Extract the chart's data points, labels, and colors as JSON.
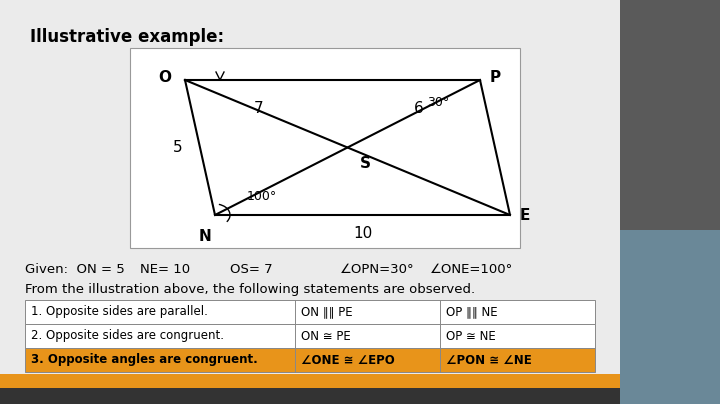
{
  "title": "Illustrative example:",
  "bg_color": "#c8c8c8",
  "slide_bg": "#ebebeb",
  "orange_color": "#e8941a",
  "text_color": "#000000",
  "diagram_box_color": "#ffffff",
  "sidebar_color": "#4a4a4a",
  "webcam_bg": "#6a8898",
  "table": {
    "rows": [
      [
        "1. Opposite sides are parallel.",
        "ON ∥∥ PE",
        "OP ∥∥ NE"
      ],
      [
        "2. Opposite sides are congruent.",
        "ON ≅ PE",
        "OP ≅ NE"
      ],
      [
        "3. Opposite angles are congruent.",
        "∠ONE ≅ ∠EPO",
        "∠PON ≅ ∠NE"
      ]
    ],
    "row_colors": [
      "#ffffff",
      "#ffffff",
      "#e8941a"
    ]
  }
}
